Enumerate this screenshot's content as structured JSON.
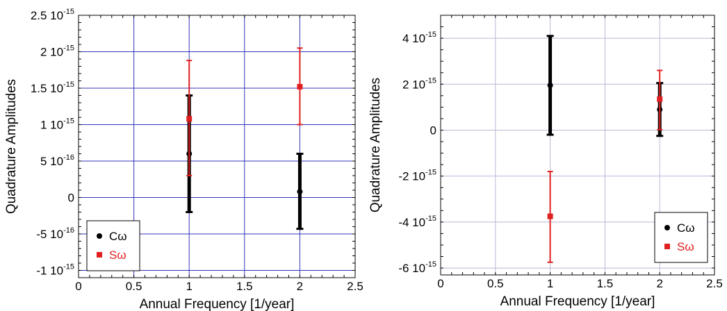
{
  "chart_data": [
    {
      "type": "scatter",
      "title": "",
      "xlabel": "Annual Frequency [1/year]",
      "ylabel": "Quadrature Amplitudes",
      "xlim": [
        0,
        2.5
      ],
      "ylim": [
        -1.1e-15,
        2.5e-15
      ],
      "grid": true,
      "grid_color": "#3333bb",
      "x_ticks": [
        {
          "value": 0,
          "label": "0"
        },
        {
          "value": 0.5,
          "label": "0.5"
        },
        {
          "value": 1,
          "label": "1"
        },
        {
          "value": 1.5,
          "label": "1.5"
        },
        {
          "value": 2,
          "label": "2"
        },
        {
          "value": 2.5,
          "label": "2.5"
        }
      ],
      "y_ticks": [
        {
          "value": -1e-15,
          "label": "-1 10",
          "exp": "-15"
        },
        {
          "value": -5e-16,
          "label": "-5 10",
          "exp": "-16"
        },
        {
          "value": 0,
          "label": "0",
          "exp": ""
        },
        {
          "value": 5e-16,
          "label": "5 10",
          "exp": "-16"
        },
        {
          "value": 1e-15,
          "label": "1 10",
          "exp": "-15"
        },
        {
          "value": 1.5e-15,
          "label": "1.5 10",
          "exp": "-15"
        },
        {
          "value": 2e-15,
          "label": "2 10",
          "exp": "-15"
        },
        {
          "value": 2.5e-15,
          "label": "2.5 10",
          "exp": "-15"
        }
      ],
      "legend_position": "bottom-left",
      "series": [
        {
          "name": "Cω",
          "color": "#000000",
          "marker": "circle",
          "points": [
            {
              "x": 1,
              "y": 6e-16,
              "err_low": -2e-16,
              "err_high": 1.4e-15
            },
            {
              "x": 2,
              "y": 8e-17,
              "err_low": -4.3e-16,
              "err_high": 6e-16
            }
          ]
        },
        {
          "name": "Sω",
          "color": "#e02020",
          "marker": "square",
          "points": [
            {
              "x": 1,
              "y": 1.08e-15,
              "err_low": 3e-16,
              "err_high": 1.88e-15
            },
            {
              "x": 2,
              "y": 1.52e-15,
              "err_low": 1e-15,
              "err_high": 2.05e-15
            }
          ]
        }
      ]
    },
    {
      "type": "scatter",
      "title": "",
      "xlabel": "Annual Frequency [1/year]",
      "ylabel": "Quadrature Amplitudes",
      "xlim": [
        0,
        2.5
      ],
      "ylim": [
        -6.3e-15,
        5e-15
      ],
      "grid": true,
      "grid_color": "#b8b8d8",
      "x_ticks": [
        {
          "value": 0,
          "label": "0"
        },
        {
          "value": 0.5,
          "label": "0.5"
        },
        {
          "value": 1,
          "label": "1"
        },
        {
          "value": 1.5,
          "label": "1.5"
        },
        {
          "value": 2,
          "label": "2"
        },
        {
          "value": 2.5,
          "label": "2.5"
        }
      ],
      "y_ticks": [
        {
          "value": -6e-15,
          "label": "-6 10",
          "exp": "-15"
        },
        {
          "value": -4e-15,
          "label": "-4 10",
          "exp": "-15"
        },
        {
          "value": -2e-15,
          "label": "-2 10",
          "exp": "-15"
        },
        {
          "value": 0,
          "label": "0",
          "exp": ""
        },
        {
          "value": 2e-15,
          "label": "2 10",
          "exp": "-15"
        },
        {
          "value": 4e-15,
          "label": "4 10",
          "exp": "-15"
        }
      ],
      "legend_position": "bottom-right",
      "series": [
        {
          "name": "Cω",
          "color": "#000000",
          "marker": "circle",
          "points": [
            {
              "x": 1,
              "y": 1.95e-15,
              "err_low": -2e-16,
              "err_high": 4.1e-15
            },
            {
              "x": 2,
              "y": 9e-16,
              "err_low": -2.5e-16,
              "err_high": 2.05e-15
            }
          ]
        },
        {
          "name": "Sω",
          "color": "#e02020",
          "marker": "square",
          "points": [
            {
              "x": 1,
              "y": -3.75e-15,
              "err_low": -5.75e-15,
              "err_high": -1.8e-15
            },
            {
              "x": 2,
              "y": 1.35e-15,
              "err_low": 2e-17,
              "err_high": 2.6e-15
            }
          ]
        }
      ]
    }
  ]
}
